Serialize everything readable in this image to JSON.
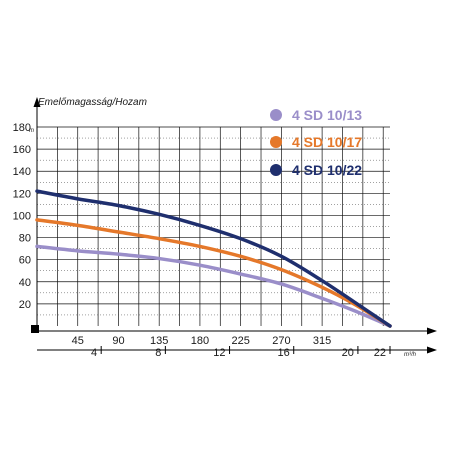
{
  "chart_data": {
    "type": "line",
    "title": "Emelőmagasság/Hozam",
    "y_unit": "m",
    "x2_unit": "m³/h",
    "x_ticks": [
      "45",
      "90",
      "135",
      "180",
      "225",
      "270",
      "315"
    ],
    "x2_ticks": [
      "4",
      "8",
      "12",
      "16",
      "20",
      "22"
    ],
    "y_ticks": [
      "20",
      "40",
      "60",
      "80",
      "100",
      "120",
      "140",
      "160",
      "180"
    ],
    "xlim": [
      0,
      390
    ],
    "ylim": [
      0,
      180
    ],
    "grid": true,
    "legend_position": "top-right",
    "series": [
      {
        "name": "4 SD 10/13",
        "color": "#9a8ec9",
        "x": [
          0,
          45,
          90,
          135,
          180,
          225,
          270,
          315,
          350,
          390
        ],
        "y": [
          72,
          68,
          65,
          61,
          55,
          47,
          38,
          25,
          14,
          0
        ]
      },
      {
        "name": "4 SD 10/17",
        "color": "#e5782a",
        "x": [
          0,
          45,
          90,
          135,
          180,
          225,
          270,
          315,
          350,
          390
        ],
        "y": [
          96,
          91,
          85,
          79,
          72,
          63,
          51,
          35,
          20,
          0
        ]
      },
      {
        "name": "4 SD 10/22",
        "color": "#1f2f6e",
        "x": [
          0,
          45,
          90,
          135,
          180,
          225,
          270,
          315,
          350,
          390
        ],
        "y": [
          122,
          115,
          109,
          101,
          91,
          79,
          63,
          41,
          22,
          0
        ]
      }
    ]
  }
}
